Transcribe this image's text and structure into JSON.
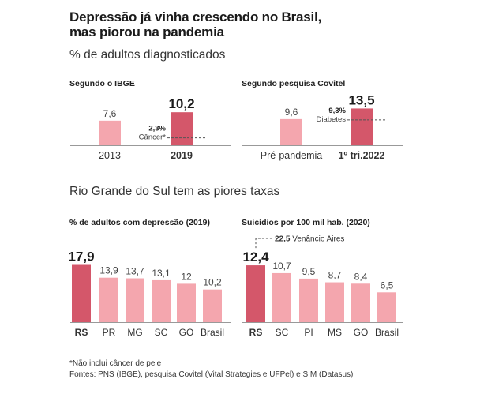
{
  "title_line1": "Depressão já vinha crescendo no Brasil,",
  "title_line2": "mas piorou na pandemia",
  "subtitle": "% de adultos diagnosticados",
  "section2_title": "Rio Grande do Sul tem as piores taxas",
  "footnote": "*Não inclui câncer de pele",
  "sources": "Fontes: PNS (IBGE), pesquisa Covitel (Vital Strategies e UFPel) e SIM (Datasus)",
  "colors": {
    "highlight": "#d4576a",
    "normal": "#f4a6ae",
    "axis": "#999999",
    "dash": "#555555"
  },
  "chart_data": [
    {
      "type": "bar",
      "title": "Segundo o IBGE",
      "categories": [
        "2013",
        "2019"
      ],
      "values": [
        7.6,
        10.2
      ],
      "value_labels": [
        "7,6",
        "10,2"
      ],
      "highlight": [
        false,
        true
      ],
      "reference": {
        "value": 2.3,
        "value_label": "2,3%",
        "label": "Câncer*"
      }
    },
    {
      "type": "bar",
      "title": "Segundo pesquisa Covitel",
      "categories": [
        "Pré-pandemia",
        "1º tri.2022"
      ],
      "values": [
        9.6,
        13.5
      ],
      "value_labels": [
        "9,6",
        "13,5"
      ],
      "highlight": [
        false,
        true
      ],
      "reference": {
        "value": 9.3,
        "value_label": "9,3%",
        "label": "Diabetes"
      }
    },
    {
      "type": "bar",
      "title": "% de adultos com depressão (2019)",
      "categories": [
        "RS",
        "PR",
        "MG",
        "SC",
        "GO",
        "Brasil"
      ],
      "values": [
        17.9,
        13.9,
        13.7,
        13.1,
        12,
        10.2
      ],
      "value_labels": [
        "17,9",
        "13,9",
        "13,7",
        "13,1",
        "12",
        "10,2"
      ],
      "highlight": [
        true,
        false,
        false,
        false,
        false,
        false
      ]
    },
    {
      "type": "bar",
      "title": "Suicídios por 100 mil hab. (2020)",
      "categories": [
        "RS",
        "SC",
        "PI",
        "MS",
        "GO",
        "Brasil"
      ],
      "values": [
        12.4,
        10.7,
        9.5,
        8.7,
        8.4,
        6.5
      ],
      "value_labels": [
        "12,4",
        "10,7",
        "9,5",
        "8,7",
        "8,4",
        "6,5"
      ],
      "highlight": [
        true,
        false,
        false,
        false,
        false,
        false
      ],
      "annotation": {
        "value": 22.5,
        "value_label": "22,5",
        "label": "Venâncio Aires"
      }
    }
  ]
}
